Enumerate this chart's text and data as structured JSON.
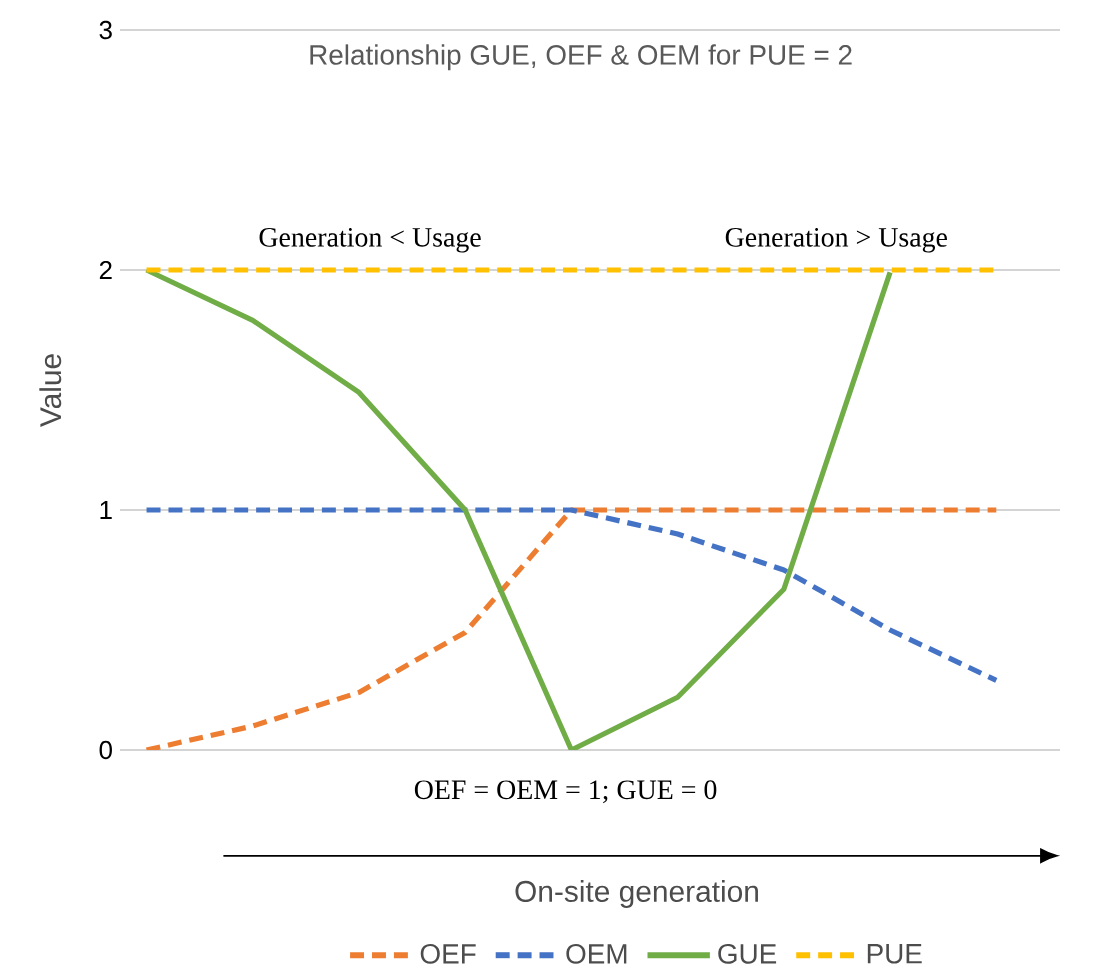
{
  "chart_data": {
    "type": "line",
    "title": "Relationship GUE, OEF & OEM for PUE = 2",
    "xlabel": "On-site generation",
    "ylabel": "Value",
    "categories": [
      null,
      null,
      null,
      null,
      null,
      null,
      null,
      null,
      null
    ],
    "series": [
      {
        "name": "OEF",
        "color": "#ed7d31",
        "line_style": "dashed",
        "values": [
          0,
          0.1,
          0.24,
          0.49,
          1,
          1,
          1,
          1,
          1
        ]
      },
      {
        "name": "OEM",
        "color": "#4472c4",
        "line_style": "dashed",
        "values": [
          1,
          1,
          1,
          1,
          1,
          0.9,
          0.75,
          0.5,
          0.29
        ]
      },
      {
        "name": "GUE",
        "color": "#70ad47",
        "line_style": "solid",
        "values": [
          2,
          1.79,
          1.49,
          1,
          0,
          0.22,
          0.67,
          1.99,
          null
        ]
      },
      {
        "name": "PUE",
        "color": "#ffc000",
        "line_style": "dashed",
        "values": [
          2,
          2,
          2,
          2,
          2,
          2,
          2,
          2,
          2
        ]
      }
    ],
    "annotations": [
      "Generation < Usage",
      "Generation > Usage",
      "OEF = OEM = 1; GUE = 0"
    ],
    "ylim": [
      0,
      3
    ],
    "yticks": [
      0,
      1,
      2,
      3
    ],
    "grid": "y",
    "legend": "bottom",
    "tick_labels": "y"
  }
}
